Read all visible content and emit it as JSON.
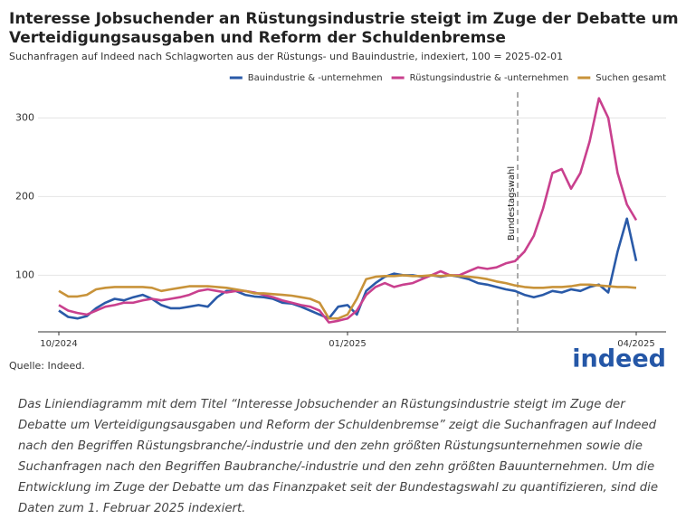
{
  "chart_data": {
    "type": "line",
    "title": "Interesse Jobsuchender an Rüstungsindustrie steigt im Zuge der Debatte um Verteidigungsausgaben und Reform der Schuldenbremse",
    "subtitle": "Suchanfragen auf Indeed nach Schlagworten aus der Rüstungs- und Bauindustrie, indexiert, 100 = 2025-02-01",
    "annotation": "Bundestagswahl",
    "source": "Quelle: Indeed.",
    "logo": "indeed",
    "caption": "Das Liniendiagramm mit dem Titel “Interesse Jobsuchender an Rüstungsindustrie steigt im Zuge der Debatte um Verteidigungsausgaben und Reform der Schuldenbremse” zeigt die Suchanfragen auf Indeed nach den Begriffen Rüstungsbranche/-industrie und den zehn größten Rüstungsunternehmen sowie die Suchanfragen nach den Begriffen Baubranche/-industrie und den zehn größten Bauunternehmen. Um die Entwicklung im Zuge der Debatte um das Finanzpaket seit der Bundestagswahl zu quantifizieren, sind die Daten zum 1. Februar 2025 indexiert.",
    "categories": [
      "10/2024",
      null,
      null,
      null,
      null,
      null,
      null,
      null,
      null,
      null,
      null,
      null,
      null,
      null,
      null,
      null,
      null,
      null,
      null,
      null,
      null,
      null,
      null,
      null,
      null,
      null,
      null,
      null,
      null,
      null,
      null,
      "01/2025",
      null,
      null,
      null,
      null,
      null,
      null,
      null,
      null,
      null,
      null,
      null,
      null,
      null,
      null,
      null,
      null,
      null,
      null,
      null,
      null,
      null,
      null,
      null,
      null,
      null,
      null,
      null,
      null,
      null,
      null,
      "04/2025"
    ],
    "series": [
      {
        "name": "Bauindustrie & -unternehmen",
        "color": "#2a5aa8",
        "values": [
          55,
          47,
          45,
          48,
          58,
          65,
          70,
          68,
          72,
          75,
          70,
          62,
          58,
          58,
          60,
          62,
          60,
          72,
          80,
          80,
          75,
          73,
          72,
          70,
          65,
          64,
          60,
          55,
          50,
          45,
          60,
          62,
          50,
          80,
          90,
          98,
          102,
          100,
          100,
          98,
          100,
          98,
          100,
          98,
          95,
          90,
          88,
          85,
          82,
          80,
          75,
          72,
          75,
          80,
          78,
          82,
          80,
          85,
          88,
          78,
          130,
          172,
          118
        ]
      },
      {
        "name": "Rüstungsindustrie & -unternehmen",
        "color": "#c9408e",
        "values": [
          62,
          55,
          52,
          50,
          55,
          60,
          62,
          65,
          65,
          68,
          70,
          68,
          70,
          72,
          75,
          80,
          82,
          80,
          78,
          80,
          80,
          78,
          75,
          72,
          68,
          65,
          62,
          60,
          55,
          40,
          42,
          45,
          55,
          75,
          85,
          90,
          85,
          88,
          90,
          95,
          100,
          105,
          100,
          100,
          105,
          110,
          108,
          110,
          115,
          118,
          130,
          150,
          185,
          230,
          235,
          210,
          230,
          270,
          325,
          300,
          230,
          190,
          170
        ]
      },
      {
        "name": "Suchen gesamt",
        "color": "#c8933a",
        "values": [
          80,
          73,
          73,
          75,
          82,
          84,
          85,
          85,
          85,
          85,
          84,
          80,
          82,
          84,
          86,
          86,
          86,
          85,
          84,
          82,
          80,
          77,
          77,
          76,
          75,
          74,
          72,
          70,
          65,
          45,
          45,
          50,
          70,
          95,
          98,
          99,
          99,
          100,
          99,
          99,
          100,
          99,
          100,
          99,
          98,
          97,
          95,
          92,
          90,
          87,
          85,
          84,
          84,
          85,
          85,
          86,
          88,
          88,
          87,
          86,
          85,
          85,
          84
        ]
      }
    ],
    "ylim": [
      28,
      335
    ],
    "yticks": [
      100,
      200,
      300
    ],
    "grid": true,
    "legend": "top-right"
  }
}
